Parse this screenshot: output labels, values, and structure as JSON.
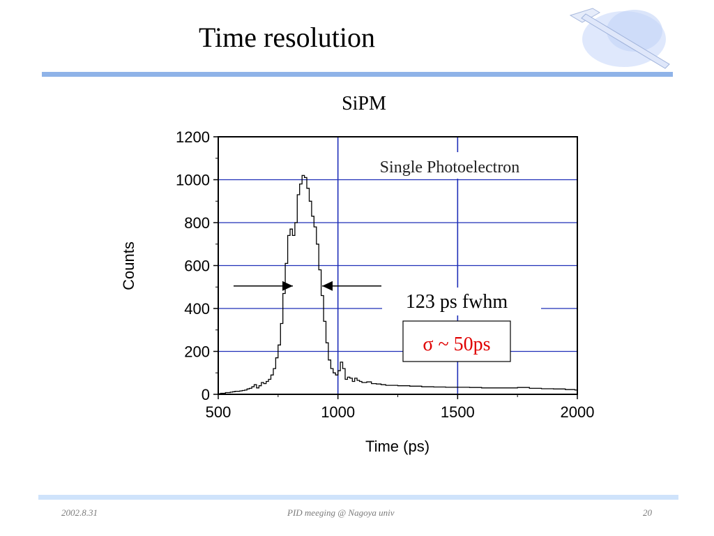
{
  "slide": {
    "title": "Time resolution",
    "footer_date": "2002.8.31",
    "footer_center": "PID meeging @ Nagoya univ",
    "footer_page": "20"
  },
  "colors": {
    "top_rule": "#8fb3e8",
    "bottom_rule": "#cfe3fb",
    "grid": "#1f2fb8",
    "annotation_red": "#e00000"
  },
  "chart_data": {
    "type": "line",
    "title": "SiPM",
    "xlabel": "Time (ps)",
    "ylabel": "Counts",
    "xlim": [
      500,
      2000
    ],
    "ylim": [
      0,
      1200
    ],
    "x_ticks": [
      "500",
      "1000",
      "1500",
      "2000"
    ],
    "y_ticks": [
      "0",
      "200",
      "400",
      "600",
      "800",
      "1000",
      "1200"
    ],
    "grid": true,
    "annotations": {
      "label": "Single Photoelectron",
      "fwhm": "123 ps fwhm",
      "sigma": "σ ~ 50ps"
    },
    "series": [
      {
        "x": [
          500,
          510,
          520,
          530,
          540,
          550,
          560,
          570,
          580,
          590,
          600,
          610,
          620,
          630,
          640,
          650,
          660,
          670,
          680,
          690,
          700,
          710,
          720,
          730,
          740,
          750,
          760,
          770,
          780,
          790,
          800,
          810,
          820,
          830,
          840,
          850,
          860,
          870,
          880,
          890,
          900,
          910,
          920,
          930,
          940,
          950,
          960,
          970,
          980,
          990,
          1000,
          1010,
          1020,
          1030,
          1040,
          1050,
          1060,
          1070,
          1080,
          1090,
          1100,
          1120,
          1140,
          1160,
          1180,
          1200,
          1250,
          1300,
          1350,
          1400,
          1450,
          1500,
          1550,
          1600,
          1650,
          1700,
          1750,
          1800,
          1850,
          1900,
          1950,
          1990
        ],
        "values": [
          3,
          5,
          5,
          8,
          8,
          10,
          12,
          14,
          14,
          16,
          18,
          20,
          25,
          28,
          35,
          45,
          30,
          40,
          55,
          50,
          60,
          70,
          90,
          120,
          170,
          230,
          330,
          470,
          610,
          740,
          770,
          740,
          800,
          930,
          980,
          1020,
          1010,
          960,
          900,
          830,
          780,
          700,
          580,
          460,
          340,
          240,
          160,
          120,
          100,
          90,
          110,
          150,
          120,
          70,
          80,
          75,
          60,
          75,
          65,
          60,
          55,
          58,
          50,
          48,
          45,
          42,
          40,
          38,
          35,
          34,
          33,
          33,
          32,
          30,
          30,
          30,
          32,
          28,
          26,
          25,
          22,
          20
        ]
      }
    ]
  }
}
